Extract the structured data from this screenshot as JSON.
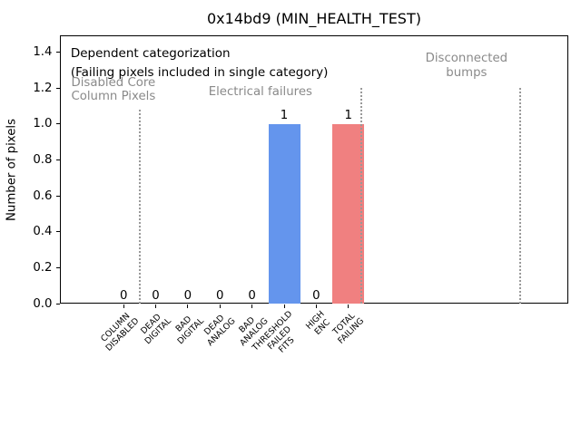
{
  "chart_data": {
    "type": "bar",
    "title": "0x14bd9 (MIN_HEALTH_TEST)",
    "ylabel": "Number of pixels",
    "xlabel": "",
    "categories": [
      "COLUMN\nDISABLED",
      "DEAD\nDIGITAL",
      "BAD\nDIGITAL",
      "DEAD\nANALOG",
      "BAD\nANALOG",
      "THRESHOLD\nFAILED\nFITS",
      "HIGH\nENC",
      "TOTAL\nFAILING"
    ],
    "values": [
      0,
      0,
      0,
      0,
      0,
      1,
      0,
      1
    ],
    "bar_value_labels": [
      "0",
      "0",
      "0",
      "0",
      "0",
      "1",
      "0",
      "1"
    ],
    "bar_colors": [
      null,
      null,
      null,
      null,
      null,
      "#6495ED",
      null,
      "#F08080"
    ],
    "yticks": [
      {
        "value": 0.0,
        "label": "0.0"
      },
      {
        "value": 0.2,
        "label": "0.2"
      },
      {
        "value": 0.4,
        "label": "0.4"
      },
      {
        "value": 0.6,
        "label": "0.6"
      },
      {
        "value": 0.8,
        "label": "0.8"
      },
      {
        "value": 1.0,
        "label": "1.0"
      },
      {
        "value": 1.2,
        "label": "1.2"
      },
      {
        "value": 1.4,
        "label": "1.4"
      }
    ],
    "ylim": [
      0,
      1.49
    ],
    "xlim": [
      -1.97,
      13.85
    ],
    "grid": false,
    "legend": null,
    "bar_width": 1.0,
    "annotations": [
      {
        "id": "dependent-categorization-note",
        "text": "Dependent categorization\n(Failing pixels included in single category)",
        "x": -1.65,
        "y": 1.44,
        "ha": "left",
        "color": "#000000",
        "size": 13.5,
        "line_height": 1.5
      },
      {
        "id": "section-label-disabled-core-column-pixels",
        "text": "Disabled Core\nColumn Pixels",
        "x": -0.32,
        "y": 1.265,
        "ha": "center",
        "color": "#8a8a8a",
        "size": 13.3,
        "line_height": 1.15
      },
      {
        "id": "section-label-electrical-failures",
        "text": "Electrical failures",
        "x": 4.26,
        "y": 1.215,
        "ha": "center",
        "color": "#8a8a8a",
        "size": 13.3,
        "line_height": 1.15
      },
      {
        "id": "section-label-disconnected-bumps",
        "text": "Disconnected\nbumps",
        "x": 10.68,
        "y": 1.4,
        "ha": "center",
        "color": "#8a8a8a",
        "size": 13.3,
        "line_height": 1.15
      }
    ],
    "dividers": [
      {
        "x": 0.51,
        "y_top": 1.08
      },
      {
        "x": 7.4,
        "y_top": 1.2
      },
      {
        "x": 12.35,
        "y_top": 1.2
      }
    ],
    "colors": {
      "threshold_failed_fits_bar": "#6495ED",
      "total_failing_bar": "#F08080",
      "section_text": "#8a8a8a",
      "divider": "#999999",
      "axis": "#000000",
      "background": "#ffffff"
    }
  }
}
